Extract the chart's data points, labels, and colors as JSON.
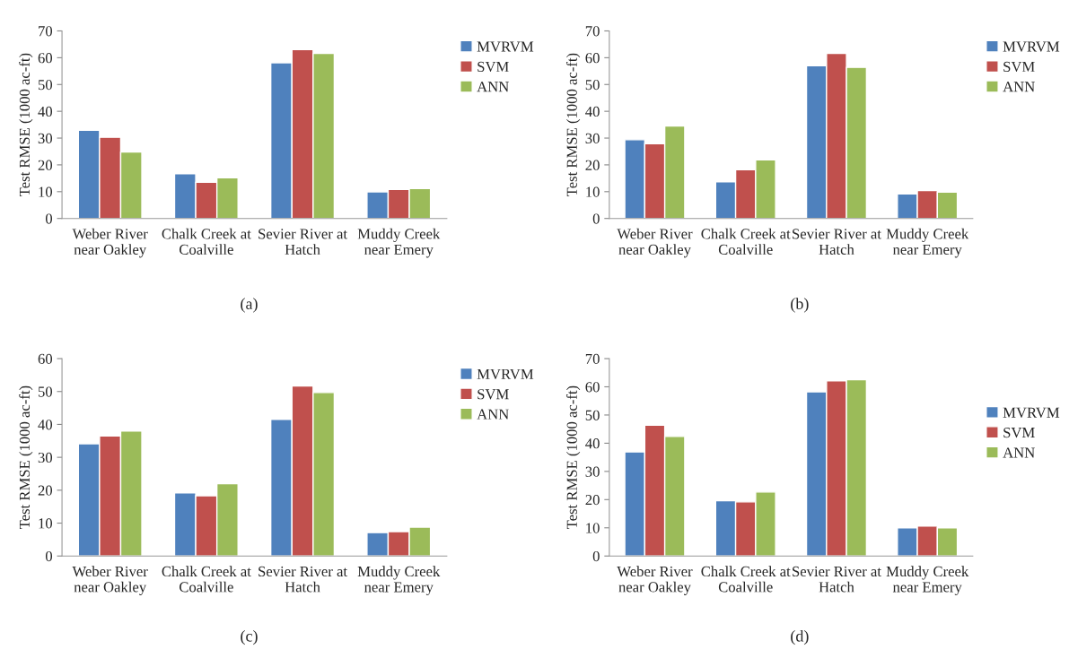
{
  "chart_data": [
    {
      "type": "bar",
      "ylabel": "Test RMSE (1000 ac-ft)",
      "categories": [
        "Weber River\nnear Oakley",
        "Chalk Creek at\nCoalville",
        "Sevier River at\nHatch",
        "Muddy Creek\nnear Emery"
      ],
      "ylim": [
        0,
        70
      ],
      "yticks": [
        0,
        10,
        20,
        30,
        40,
        50,
        60,
        70
      ],
      "legend": "top right",
      "annotations": [
        "(a)"
      ],
      "series": [
        {
          "name": "MVRVM",
          "color": "#4f81bd",
          "values": [
            32.9,
            16.7,
            58.1,
            9.9
          ]
        },
        {
          "name": "SVM",
          "color": "#c0504d",
          "values": [
            30.3,
            13.5,
            63.0,
            10.8
          ]
        },
        {
          "name": "ANN",
          "color": "#9bbb59",
          "values": [
            24.8,
            15.2,
            61.6,
            11.2
          ]
        }
      ]
    },
    {
      "type": "bar",
      "ylabel": "Test RMSE (1000 ac-ft)",
      "categories": [
        "Weber River\nnear Oakley",
        "Chalk Creek at\nCoalville",
        "Sevier River at\nHatch",
        "Muddy Creek\nnear Emery"
      ],
      "ylim": [
        0,
        70
      ],
      "yticks": [
        0,
        10,
        20,
        30,
        40,
        50,
        60,
        70
      ],
      "legend": "top right",
      "annotations": [
        "(b)"
      ],
      "series": [
        {
          "name": "MVRVM",
          "color": "#4f81bd",
          "values": [
            29.4,
            13.7,
            57.0,
            9.2
          ]
        },
        {
          "name": "SVM",
          "color": "#c0504d",
          "values": [
            27.9,
            18.2,
            61.6,
            10.4
          ]
        },
        {
          "name": "ANN",
          "color": "#9bbb59",
          "values": [
            34.5,
            21.9,
            56.4,
            9.8
          ]
        }
      ]
    },
    {
      "type": "bar",
      "ylabel": "Test RMSE (1000 ac-ft)",
      "categories": [
        "Weber River\nnear Oakley",
        "Chalk Creek at\nCoalville",
        "Sevier River at\nHatch",
        "Muddy Creek\nnear Emery"
      ],
      "ylim": [
        0,
        60
      ],
      "yticks": [
        0,
        10,
        20,
        30,
        40,
        50,
        60
      ],
      "legend": "top right",
      "annotations": [
        "(c)"
      ],
      "series": [
        {
          "name": "MVRVM",
          "color": "#4f81bd",
          "values": [
            34.1,
            19.2,
            41.5,
            7.1
          ]
        },
        {
          "name": "SVM",
          "color": "#c0504d",
          "values": [
            36.5,
            18.3,
            51.7,
            7.4
          ]
        },
        {
          "name": "ANN",
          "color": "#9bbb59",
          "values": [
            38.0,
            22.0,
            49.7,
            8.8
          ]
        }
      ]
    },
    {
      "type": "bar",
      "ylabel": "Test RMSE (1000 ac-ft)",
      "categories": [
        "Weber River\nnear Oakley",
        "Chalk Creek at\nCoalville",
        "Sevier River at\nHatch",
        "Muddy Creek\nnear Emery"
      ],
      "ylim": [
        0,
        70
      ],
      "yticks": [
        0,
        10,
        20,
        30,
        40,
        50,
        60,
        70
      ],
      "legend": "right",
      "annotations": [
        "(d)"
      ],
      "series": [
        {
          "name": "MVRVM",
          "color": "#4f81bd",
          "values": [
            36.9,
            19.6,
            58.2,
            10.0
          ]
        },
        {
          "name": "SVM",
          "color": "#c0504d",
          "values": [
            46.4,
            19.2,
            62.1,
            10.6
          ]
        },
        {
          "name": "ANN",
          "color": "#9bbb59",
          "values": [
            42.4,
            22.7,
            62.5,
            10.0
          ]
        }
      ]
    }
  ]
}
